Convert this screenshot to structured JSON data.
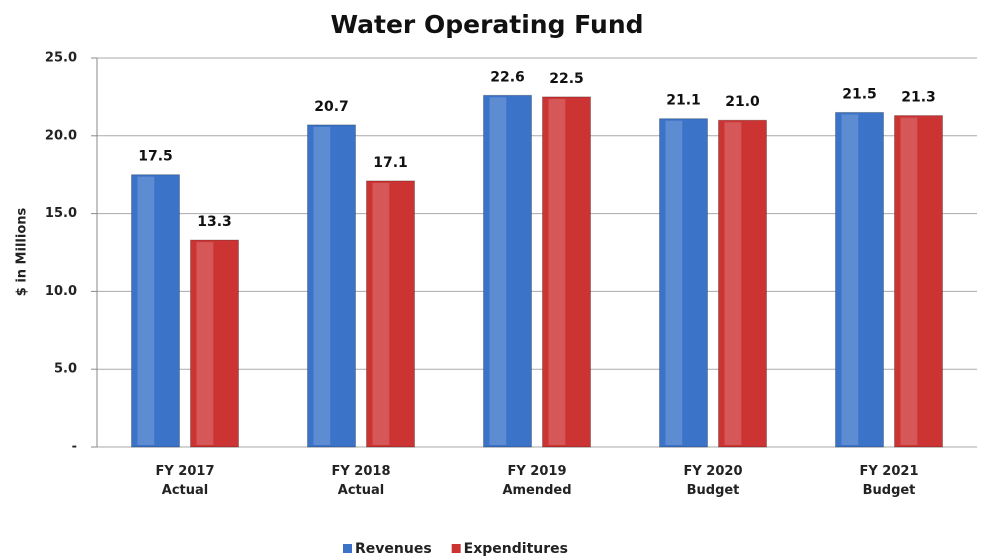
{
  "chart_data": {
    "type": "bar",
    "title": "Water Operating Fund",
    "y_label": "$ in Millions",
    "categories": [
      "FY 2017\nActual",
      "FY 2018\nActual",
      "FY 2019\nAmended",
      "FY 2020\nBudget",
      "FY 2021\nBudget"
    ],
    "series": [
      {
        "name": "Revenues",
        "color": "#3b73c8",
        "values": [
          17.5,
          20.7,
          22.6,
          21.1,
          21.5
        ],
        "value_labels": [
          "17.5",
          "20.7",
          "22.6",
          "21.1",
          "21.5"
        ]
      },
      {
        "name": "Expenditures",
        "color": "#cc3333",
        "values": [
          13.3,
          17.1,
          22.5,
          21.0,
          21.3
        ],
        "value_labels": [
          "13.3",
          "17.1",
          "22.5",
          "21.0",
          "21.3"
        ]
      }
    ],
    "ylim": [
      0,
      25
    ],
    "yticks": [
      {
        "value": 0,
        "label": "-"
      },
      {
        "value": 5,
        "label": "5.0"
      },
      {
        "value": 10,
        "label": "10.0"
      },
      {
        "value": 15,
        "label": "15.0"
      },
      {
        "value": 20,
        "label": "20.0"
      },
      {
        "value": 25,
        "label": "25.0"
      }
    ],
    "grid": true,
    "legend": "bottom"
  }
}
